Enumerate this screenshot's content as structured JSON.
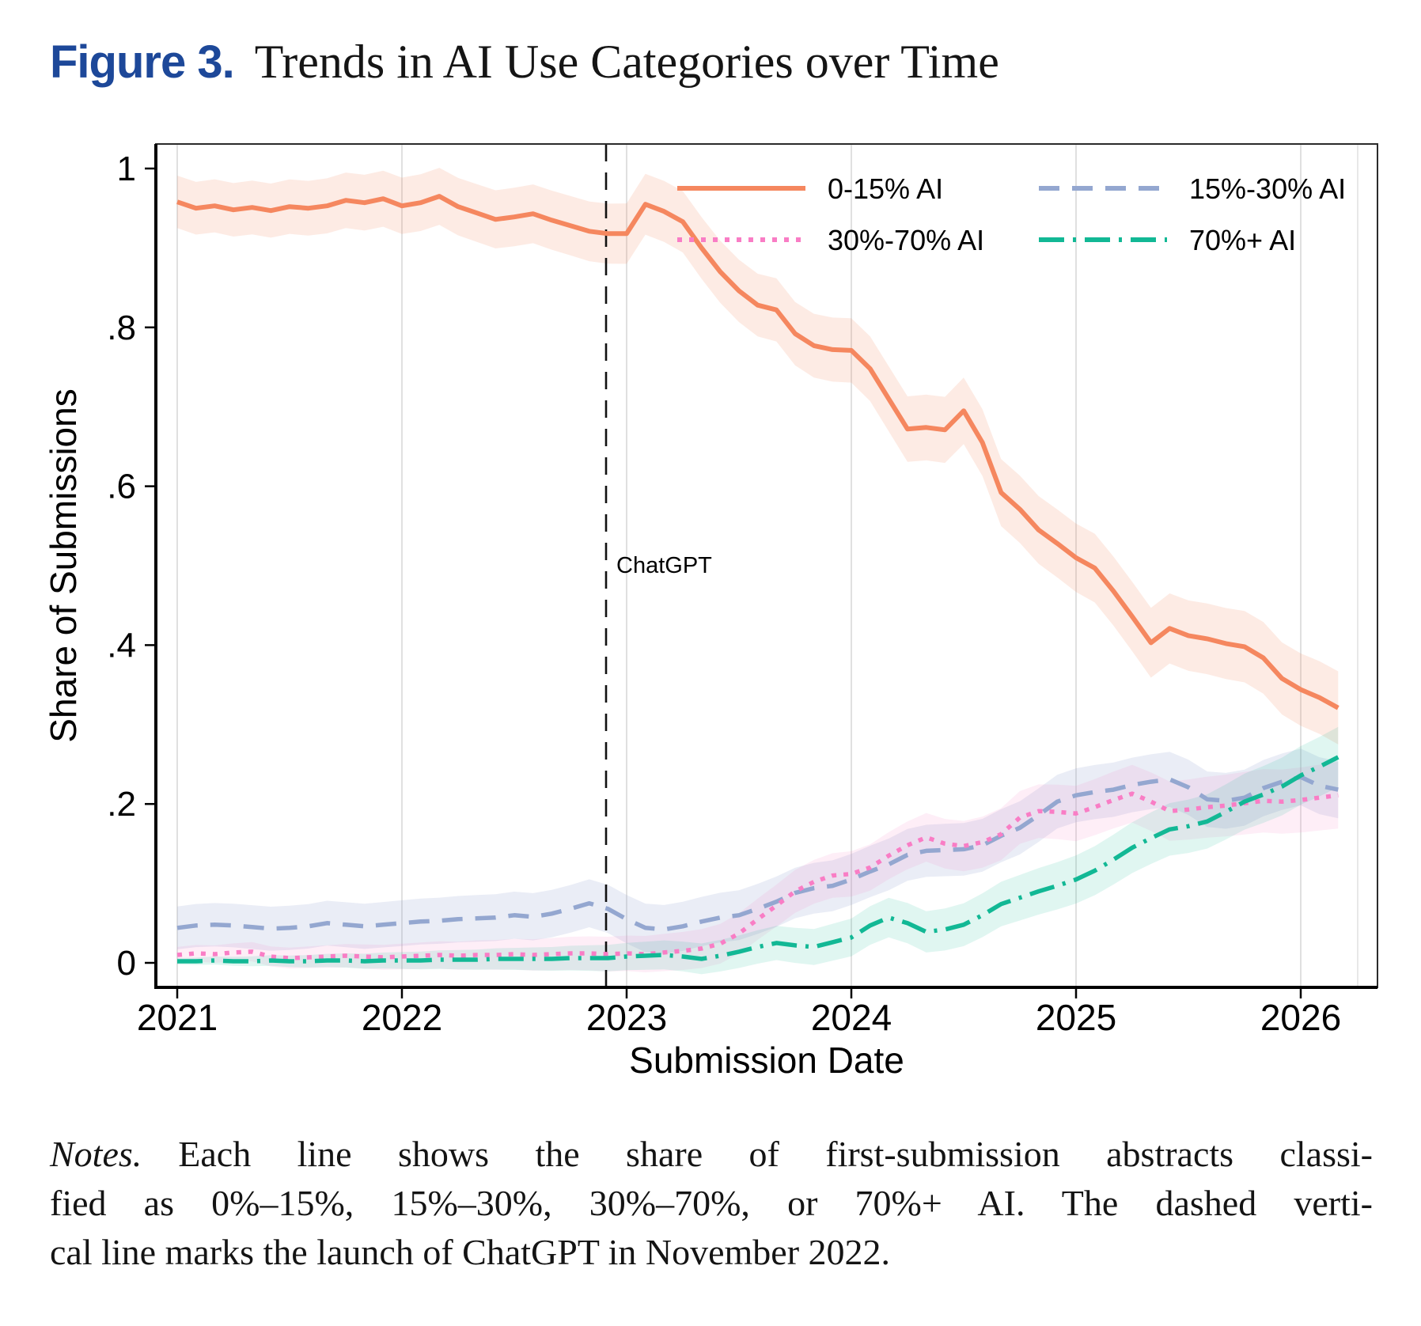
{
  "figure": {
    "label": "Figure 3.",
    "title": "Trends in AI Use Categories over Time"
  },
  "chart_data": {
    "type": "line",
    "xlabel": "Submission Date",
    "ylabel": "Share of Submissions",
    "x_tick_labels": [
      "2021",
      "2022",
      "2023",
      "2024",
      "2025",
      "2026"
    ],
    "x_ticks": [
      2021,
      2022,
      2023,
      2024,
      2025,
      2026
    ],
    "y_ticks": [
      0,
      0.2,
      0.4,
      0.6,
      0.8,
      1
    ],
    "y_tick_labels": [
      "0",
      ".2",
      ".4",
      ".6",
      ".8",
      "1"
    ],
    "xlim": [
      2020.905,
      2026.34
    ],
    "ylim": [
      0,
      1.03
    ],
    "grid": "vertical-year-gridlines",
    "legend_position": "top-right-inside-two-columns",
    "x_start": 2021.0,
    "x_step_months": 1,
    "reference_line": {
      "x": 2022.92,
      "label": "ChatGPT"
    },
    "series": [
      {
        "name": "0-15% AI",
        "style": "solid",
        "color": "#F5875F",
        "band_opacity": 0.17,
        "ci_halfwidth": [
          0.033,
          0.046
        ],
        "values": [
          0.958,
          0.95,
          0.953,
          0.948,
          0.951,
          0.947,
          0.952,
          0.95,
          0.953,
          0.96,
          0.957,
          0.962,
          0.953,
          0.957,
          0.965,
          0.952,
          0.944,
          0.936,
          0.939,
          0.943,
          0.935,
          0.928,
          0.921,
          0.918,
          0.918,
          0.955,
          0.946,
          0.933,
          0.9,
          0.87,
          0.846,
          0.828,
          0.822,
          0.792,
          0.777,
          0.772,
          0.771,
          0.748,
          0.71,
          0.672,
          0.674,
          0.671,
          0.695,
          0.655,
          0.592,
          0.571,
          0.545,
          0.528,
          0.51,
          0.497,
          0.468,
          0.436,
          0.403,
          0.421,
          0.412,
          0.408,
          0.402,
          0.398,
          0.384,
          0.358,
          0.344,
          0.334,
          0.321
        ]
      },
      {
        "name": "15%-30% AI",
        "style": "dashed",
        "color": "#94A7D0",
        "band_opacity": 0.2,
        "ci_halfwidth": [
          0.027,
          0.036
        ],
        "values": [
          0.044,
          0.047,
          0.048,
          0.047,
          0.045,
          0.043,
          0.044,
          0.046,
          0.05,
          0.048,
          0.046,
          0.048,
          0.05,
          0.052,
          0.053,
          0.055,
          0.056,
          0.057,
          0.06,
          0.058,
          0.062,
          0.068,
          0.075,
          0.068,
          0.055,
          0.044,
          0.042,
          0.046,
          0.052,
          0.057,
          0.06,
          0.068,
          0.077,
          0.088,
          0.094,
          0.097,
          0.105,
          0.115,
          0.124,
          0.136,
          0.141,
          0.142,
          0.143,
          0.148,
          0.16,
          0.17,
          0.186,
          0.203,
          0.211,
          0.215,
          0.218,
          0.224,
          0.228,
          0.231,
          0.221,
          0.206,
          0.204,
          0.208,
          0.22,
          0.228,
          0.234,
          0.223,
          0.218
        ]
      },
      {
        "name": "30%-70% AI",
        "style": "dotted",
        "color": "#F97DC5",
        "band_opacity": 0.13,
        "ci_halfwidth": [
          0.01,
          0.042
        ],
        "values": [
          0.01,
          0.012,
          0.011,
          0.013,
          0.014,
          0.008,
          0.006,
          0.007,
          0.008,
          0.009,
          0.008,
          0.007,
          0.008,
          0.009,
          0.01,
          0.009,
          0.01,
          0.01,
          0.011,
          0.01,
          0.011,
          0.012,
          0.012,
          0.011,
          0.012,
          0.011,
          0.013,
          0.015,
          0.018,
          0.024,
          0.037,
          0.055,
          0.072,
          0.09,
          0.102,
          0.11,
          0.112,
          0.12,
          0.135,
          0.148,
          0.158,
          0.15,
          0.147,
          0.152,
          0.162,
          0.183,
          0.191,
          0.19,
          0.188,
          0.196,
          0.205,
          0.213,
          0.203,
          0.191,
          0.193,
          0.196,
          0.198,
          0.201,
          0.204,
          0.203,
          0.205,
          0.208,
          0.211
        ]
      },
      {
        "name": "70%+ AI",
        "style": "dashdot",
        "color": "#12B895",
        "band_opacity": 0.13,
        "ci_halfwidth": [
          0.004,
          0.038
        ],
        "values": [
          0.002,
          0.002,
          0.003,
          0.002,
          0.002,
          0.003,
          0.002,
          0.002,
          0.003,
          0.003,
          0.002,
          0.003,
          0.003,
          0.003,
          0.004,
          0.004,
          0.004,
          0.005,
          0.005,
          0.005,
          0.005,
          0.006,
          0.006,
          0.006,
          0.008,
          0.009,
          0.01,
          0.008,
          0.005,
          0.009,
          0.014,
          0.02,
          0.025,
          0.022,
          0.02,
          0.026,
          0.032,
          0.047,
          0.057,
          0.05,
          0.039,
          0.042,
          0.048,
          0.06,
          0.074,
          0.082,
          0.09,
          0.097,
          0.105,
          0.116,
          0.13,
          0.145,
          0.157,
          0.168,
          0.172,
          0.178,
          0.19,
          0.203,
          0.212,
          0.222,
          0.236,
          0.247,
          0.259
        ]
      }
    ]
  },
  "notes": {
    "prefix": "Notes.",
    "line1": "Each line shows the share of first-submission abstracts classi-",
    "line2": "fied as 0%–15%, 15%–30%, 30%–70%, or 70%+ AI. The dashed verti-",
    "line3": "cal line marks the launch of ChatGPT in November 2022."
  }
}
